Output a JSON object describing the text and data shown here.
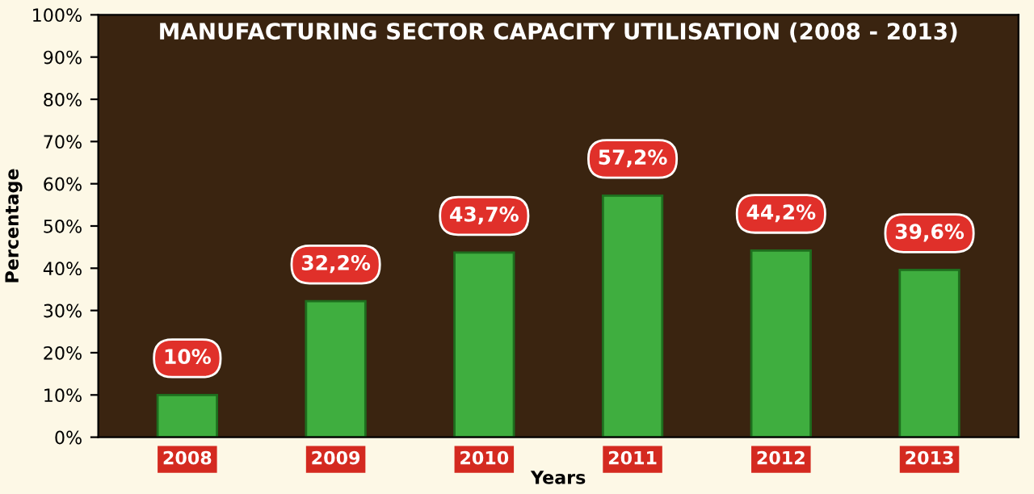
{
  "chart_data": {
    "type": "bar",
    "title": "MANUFACTURING SECTOR CAPACITY UTILISATION (2008 - 2013)",
    "xlabel": "Years",
    "ylabel": "Percentage",
    "categories": [
      "2008",
      "2009",
      "2010",
      "2011",
      "2012",
      "2013"
    ],
    "values": [
      10,
      32.2,
      43.7,
      57.2,
      44.2,
      39.6
    ],
    "value_labels": [
      "10%",
      "32,2%",
      "43,7%",
      "57,2%",
      "44,2%",
      "39,6%"
    ],
    "color": "#3fae3f",
    "ylim": [
      0,
      100
    ],
    "yticks": [
      {
        "value": 0,
        "label": "0%"
      },
      {
        "value": 10,
        "label": "10%"
      },
      {
        "value": 20,
        "label": "20%"
      },
      {
        "value": 30,
        "label": "30%"
      },
      {
        "value": 40,
        "label": "40%"
      },
      {
        "value": 50,
        "label": "50%"
      },
      {
        "value": 60,
        "label": "60%"
      },
      {
        "value": 70,
        "label": "70%"
      },
      {
        "value": 80,
        "label": "80%"
      },
      {
        "value": 90,
        "label": "90%"
      },
      {
        "value": 100,
        "label": "100%"
      }
    ],
    "grid": false,
    "legend": false
  }
}
